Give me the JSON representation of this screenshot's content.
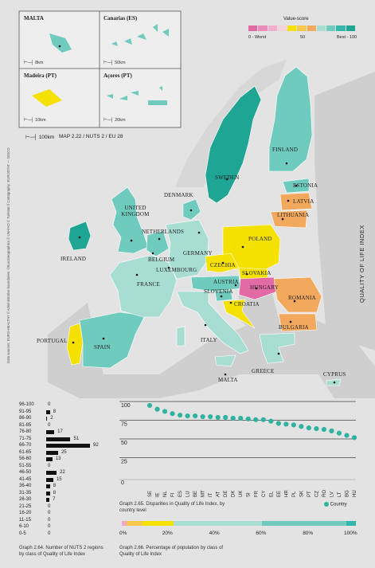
{
  "legend": {
    "title": "Value-score",
    "worst_label": "0 - Worst",
    "mid_label": "50",
    "best_label": "Best - 100",
    "colors": [
      "#e26aa5",
      "#e98cb8",
      "#f0aecb",
      "#f4d2dc",
      "#f4e100",
      "#f7c84a",
      "#f2a95e",
      "#a8ddd2",
      "#6ecbbd",
      "#31b8a8",
      "#1ea593"
    ]
  },
  "insets": [
    {
      "title": "MALTA",
      "scale": "8km"
    },
    {
      "title": "Canarias (ES)",
      "scale": "50km"
    },
    {
      "title": "Madeira (PT)",
      "scale": "10km"
    },
    {
      "title": "Açores (PT)",
      "scale": "20km"
    }
  ],
  "map_meta": {
    "scale": "100km",
    "map_id": "MAP 2.22 / NUTS 2 / EU 28"
  },
  "country_labels": [
    {
      "name": "FINLAND"
    },
    {
      "name": "SWEDEN"
    },
    {
      "name": "ESTONIA"
    },
    {
      "name": "LATVIA"
    },
    {
      "name": "DENMARK"
    },
    {
      "name": "LITHUANIA"
    },
    {
      "name": "UNITED KINGDOM"
    },
    {
      "name": "NETHERLANDS"
    },
    {
      "name": "POLAND"
    },
    {
      "name": "IRELAND"
    },
    {
      "name": "GERMANY"
    },
    {
      "name": "BELGIUM"
    },
    {
      "name": "CZECHIA"
    },
    {
      "name": "LUXEMBOURG"
    },
    {
      "name": "SLOVAKIA"
    },
    {
      "name": "FRANCE"
    },
    {
      "name": "AUSTRIA"
    },
    {
      "name": "HUNGARY"
    },
    {
      "name": "ROMANIA"
    },
    {
      "name": "SLOVENIA"
    },
    {
      "name": "CROATIA"
    },
    {
      "name": "BULGARIA"
    },
    {
      "name": "PORTUGAL"
    },
    {
      "name": "SPAIN"
    },
    {
      "name": "ITALY"
    },
    {
      "name": "GREECE"
    },
    {
      "name": "MALTA"
    },
    {
      "name": "CYPRUS"
    }
  ],
  "side_title": "QUALITY OF LIFE INDEX",
  "sources": "Data sources: EURO-HEALTHY // Administrative boundaries: ©EuroGeographics © UN-FAO © Turkstat // Cartography: EUROSTAT — GISCO",
  "histogram": {
    "caption": "Graph 2.64. Number of NUTS 2 regions by class of Quality of Life Index",
    "categories": [
      "96-100",
      "91-95",
      "86-90",
      "81-85",
      "76-80",
      "71-75",
      "66-70",
      "61-65",
      "56-60",
      "51-55",
      "46-50",
      "41-45",
      "36-40",
      "31-35",
      "26-30",
      "21-25",
      "16-20",
      "11-15",
      "6-10",
      "0-5"
    ],
    "values": [
      0,
      8,
      2,
      0,
      17,
      51,
      92,
      25,
      13,
      0,
      22,
      15,
      8,
      8,
      7,
      0,
      0,
      0,
      0,
      0
    ]
  },
  "chart_data": [
    {
      "type": "scatter",
      "caption": "Graph 2.65. Disparities in Quality of Life Index, by country level",
      "categories": [
        "SE",
        "IE",
        "NL",
        "FI",
        "ES",
        "LU",
        "BE",
        "MT",
        "IT",
        "AT",
        "DE",
        "DK",
        "UK",
        "SI",
        "FR",
        "CY",
        "EL",
        "EE",
        "HR",
        "PL",
        "SK",
        "PT",
        "CZ",
        "RO",
        "LV",
        "LT",
        "BG",
        "HU"
      ],
      "values": [
        99,
        94,
        91,
        88,
        86,
        85,
        85,
        84,
        84,
        83,
        83,
        82,
        82,
        81,
        80,
        80,
        78,
        75,
        74,
        73,
        71,
        69,
        68,
        67,
        65,
        62,
        59,
        56
      ],
      "yticks": [
        0,
        25,
        50,
        75,
        100
      ],
      "ylim": [
        0,
        100
      ],
      "legend": "Country",
      "color": "#2fb3a1"
    },
    {
      "type": "bar",
      "caption": "Graph 2.66. Percentage of population by class of Quality of Life Index",
      "ticks": [
        "0%",
        "20%",
        "40%",
        "60%",
        "80%",
        "100%"
      ],
      "segments": [
        {
          "color": "#f4a6c8",
          "value": 2
        },
        {
          "color": "#f7c84a",
          "value": 7
        },
        {
          "color": "#f4e100",
          "value": 13
        },
        {
          "color": "#a8ddd2",
          "value": 38
        },
        {
          "color": "#6ecbbd",
          "value": 36
        },
        {
          "color": "#31b8a8",
          "value": 4
        }
      ]
    }
  ]
}
